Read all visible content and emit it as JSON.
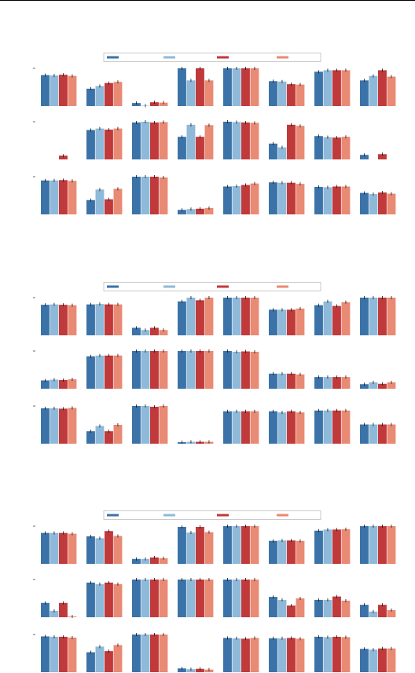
{
  "colors": {
    "series1": "#3b73a8",
    "series2": "#8fb9d9",
    "series3": "#c0393b",
    "series4": "#e98a74",
    "axis": "#444444",
    "error_bar": "#111111"
  },
  "chart_data": [
    {
      "type": "bar",
      "title": "",
      "legend": {
        "position": "top-center",
        "entries": [
          "",
          "",
          "",
          ""
        ]
      },
      "grid": false,
      "series_count": 4,
      "rows": [
        {
          "ylim": [
            0,
            1
          ],
          "panels": [
            [
              0.82,
              0.81,
              0.83,
              0.8
            ],
            [
              0.46,
              0.53,
              0.61,
              0.64
            ],
            [
              0.08,
              0.01,
              0.1,
              0.09
            ],
            [
              1.0,
              0.68,
              1.0,
              0.68
            ],
            [
              1.0,
              1.0,
              1.0,
              1.0
            ],
            [
              0.66,
              0.65,
              0.58,
              0.57
            ],
            [
              0.91,
              0.95,
              0.95,
              0.95
            ],
            [
              0.68,
              0.8,
              0.95,
              0.78
            ]
          ]
        },
        {
          "ylim": [
            0,
            1
          ],
          "panels": [
            [
              0.0,
              0.0,
              0.1,
              0.0
            ],
            [
              0.78,
              0.82,
              0.79,
              0.82
            ],
            [
              0.98,
              1.0,
              0.98,
              0.99
            ],
            [
              0.6,
              0.92,
              0.6,
              0.91
            ],
            [
              1.0,
              0.99,
              0.98,
              0.97
            ],
            [
              0.42,
              0.32,
              0.92,
              0.89
            ],
            [
              0.62,
              0.59,
              0.58,
              0.6
            ],
            [
              0.12,
              0.0,
              0.14,
              0.0
            ]
          ]
        },
        {
          "ylim": [
            0,
            1
          ],
          "panels": [
            [
              0.9,
              0.9,
              0.91,
              0.89
            ],
            [
              0.38,
              0.66,
              0.4,
              0.68
            ],
            [
              1.0,
              1.0,
              1.0,
              0.98
            ],
            [
              0.12,
              0.14,
              0.15,
              0.17
            ],
            [
              0.74,
              0.75,
              0.78,
              0.82
            ],
            [
              0.85,
              0.84,
              0.84,
              0.81
            ],
            [
              0.73,
              0.72,
              0.74,
              0.74
            ],
            [
              0.57,
              0.54,
              0.58,
              0.55
            ]
          ]
        }
      ]
    },
    {
      "type": "bar",
      "title": "",
      "legend": {
        "position": "top-center",
        "entries": [
          "",
          "",
          "",
          ""
        ]
      },
      "grid": false,
      "series_count": 4,
      "rows": [
        {
          "ylim": [
            0,
            1
          ],
          "panels": [
            [
              0.81,
              0.82,
              0.81,
              0.8
            ],
            [
              0.82,
              0.83,
              0.82,
              0.82
            ],
            [
              0.2,
              0.14,
              0.2,
              0.14
            ],
            [
              0.9,
              1.0,
              0.93,
              1.0
            ],
            [
              1.0,
              1.0,
              1.0,
              1.0
            ],
            [
              0.68,
              0.68,
              0.68,
              0.71
            ],
            [
              0.8,
              0.9,
              0.78,
              0.88
            ],
            [
              1.0,
              1.0,
              1.0,
              1.0
            ]
          ]
        },
        {
          "ylim": [
            0,
            1
          ],
          "panels": [
            [
              0.22,
              0.24,
              0.23,
              0.25
            ],
            [
              0.86,
              0.88,
              0.88,
              0.88
            ],
            [
              1.0,
              1.0,
              1.0,
              1.0
            ],
            [
              1.0,
              1.0,
              1.0,
              1.0
            ],
            [
              1.0,
              0.98,
              0.99,
              0.98
            ],
            [
              0.4,
              0.4,
              0.4,
              0.38
            ],
            [
              0.31,
              0.31,
              0.31,
              0.31
            ],
            [
              0.12,
              0.17,
              0.13,
              0.17
            ]
          ]
        },
        {
          "ylim": [
            0,
            1
          ],
          "panels": [
            [
              0.94,
              0.94,
              0.93,
              0.95
            ],
            [
              0.33,
              0.47,
              0.33,
              0.5
            ],
            [
              1.0,
              1.0,
              0.98,
              1.0
            ],
            [
              0.04,
              0.05,
              0.05,
              0.05
            ],
            [
              0.86,
              0.86,
              0.86,
              0.86
            ],
            [
              0.86,
              0.83,
              0.86,
              0.83
            ],
            [
              0.88,
              0.88,
              0.88,
              0.88
            ],
            [
              0.51,
              0.51,
              0.51,
              0.51
            ]
          ]
        }
      ]
    },
    {
      "type": "bar",
      "title": "",
      "legend": {
        "position": "top-center",
        "entries": [
          "",
          "",
          "",
          ""
        ]
      },
      "grid": false,
      "series_count": 4,
      "rows": [
        {
          "ylim": [
            0,
            1
          ],
          "panels": [
            [
              0.82,
              0.82,
              0.82,
              0.8
            ],
            [
              0.73,
              0.68,
              0.87,
              0.74
            ],
            [
              0.13,
              0.13,
              0.17,
              0.15
            ],
            [
              0.98,
              0.83,
              0.98,
              0.84
            ],
            [
              1.0,
              1.0,
              1.0,
              1.0
            ],
            [
              0.61,
              0.62,
              0.62,
              0.61
            ],
            [
              0.88,
              0.91,
              0.91,
              0.92
            ],
            [
              1.0,
              1.0,
              1.0,
              1.0
            ]
          ]
        },
        {
          "ylim": [
            0,
            1
          ],
          "panels": [
            [
              0.38,
              0.17,
              0.38,
              0.02
            ],
            [
              0.92,
              0.88,
              0.92,
              0.88
            ],
            [
              1.0,
              1.0,
              1.0,
              1.0
            ],
            [
              1.0,
              1.0,
              1.0,
              1.0
            ],
            [
              1.0,
              1.0,
              1.0,
              1.0
            ],
            [
              0.54,
              0.46,
              0.31,
              0.5
            ],
            [
              0.46,
              0.46,
              0.55,
              0.44
            ],
            [
              0.33,
              0.15,
              0.33,
              0.19
            ]
          ]
        },
        {
          "ylim": [
            0,
            1
          ],
          "panels": [
            [
              0.95,
              0.94,
              0.94,
              0.92
            ],
            [
              0.53,
              0.68,
              0.56,
              0.72
            ],
            [
              1.0,
              1.0,
              1.0,
              1.0
            ],
            [
              0.1,
              0.08,
              0.09,
              0.07
            ],
            [
              0.91,
              0.9,
              0.89,
              0.91
            ],
            [
              0.9,
              0.9,
              0.91,
              0.89
            ],
            [
              0.94,
              0.93,
              0.94,
              0.93
            ],
            [
              0.62,
              0.6,
              0.63,
              0.63
            ]
          ]
        }
      ]
    }
  ]
}
